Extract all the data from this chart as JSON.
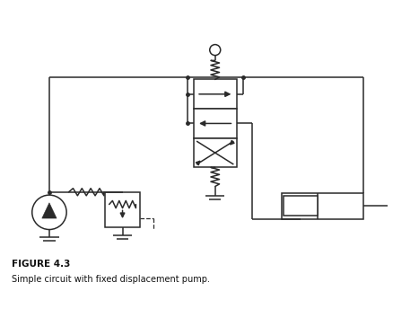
{
  "title": "FIGURE 4.3",
  "subtitle": "Simple circuit with fixed displacement pump.",
  "bg_color": "#ffffff",
  "line_color": "#2a2a2a",
  "figsize": [
    4.67,
    3.44
  ],
  "dpi": 100,
  "xlim": [
    0,
    9.34
  ],
  "ylim": [
    0,
    6.88
  ]
}
